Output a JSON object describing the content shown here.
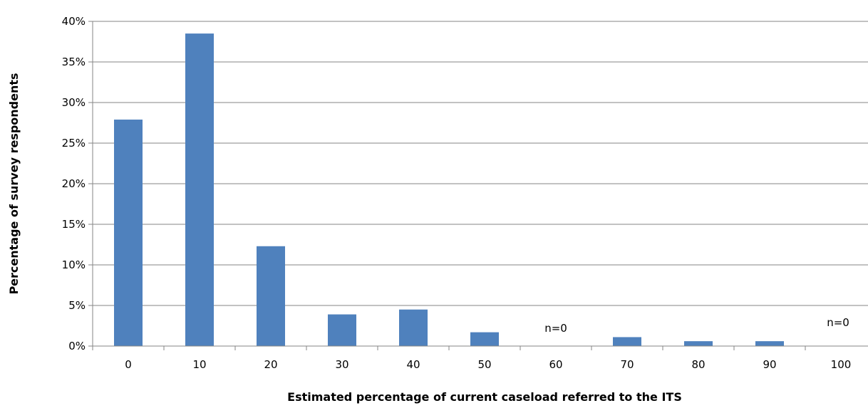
{
  "chart_data": {
    "type": "bar",
    "title": "",
    "xlabel": "Estimated percentage of current caseload referred to the ITS",
    "ylabel": "Percentage of survey respondents",
    "categories": [
      "0",
      "10",
      "20",
      "30",
      "40",
      "50",
      "60",
      "70",
      "80",
      "90",
      "100"
    ],
    "values": [
      27.9,
      38.5,
      12.3,
      3.9,
      4.5,
      1.7,
      0,
      1.1,
      0.6,
      0.6,
      0
    ],
    "ylim": [
      0,
      40
    ],
    "yticks": [
      0,
      5,
      10,
      15,
      20,
      25,
      30,
      35,
      40
    ],
    "ytick_labels": [
      "0%",
      "5%",
      "10%",
      "15%",
      "20%",
      "25%",
      "30%",
      "35%",
      "40%"
    ],
    "annotations": [
      {
        "category": "60",
        "text": "n=0"
      },
      {
        "category": "100",
        "text": "n=0"
      }
    ],
    "grid": "horizontal",
    "legend": "none",
    "bar_color": "#4f81bd",
    "grid_color": "#868686"
  }
}
